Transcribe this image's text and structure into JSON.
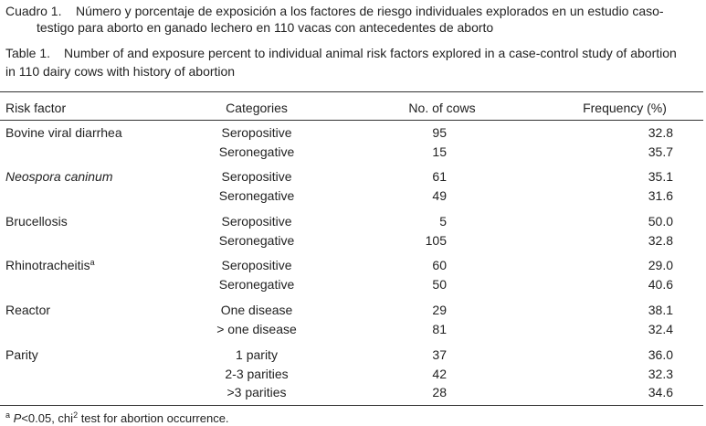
{
  "caption_es": {
    "label": "Cuadro 1.",
    "lines": [
      "Número y porcentaje de exposición a los factores de riesgo individuales explorados en un estudio caso-",
      "testigo para aborto en ganado lechero en 110 vacas con antecedentes de aborto"
    ]
  },
  "caption_en": {
    "label": "Table 1.",
    "lines": [
      "Number of and exposure percent to individual animal risk factors explored in a case-control study of abortion",
      "in 110 dairy cows with history of abortion"
    ]
  },
  "table": {
    "header": [
      "Risk factor",
      "Categories",
      "No. of cows",
      "Frequency (%)"
    ],
    "groups": [
      {
        "factor": "Bovine viral diarrhea",
        "rows": [
          [
            "Seropositive",
            "95",
            "32.8"
          ],
          [
            "Seronegative",
            "15",
            "35.7"
          ]
        ]
      },
      {
        "factor": "Neospora caninum",
        "italic": true,
        "rows": [
          [
            "Seropositive",
            "61",
            "35.1"
          ],
          [
            "Seronegative",
            "49",
            "31.6"
          ]
        ]
      },
      {
        "factor": "Brucellosis",
        "rows": [
          [
            "Seropositive",
            "5",
            "50.0"
          ],
          [
            "Seronegative",
            "105",
            "32.8"
          ]
        ]
      },
      {
        "factor": "Rhinotracheitis",
        "note": "a",
        "rows": [
          [
            "Seropositive",
            "60",
            "29.0"
          ],
          [
            "Seronegative",
            "50",
            "40.6"
          ]
        ]
      },
      {
        "factor": "Reactor",
        "rows": [
          [
            "One disease",
            "29",
            "38.1"
          ],
          [
            "> one disease",
            "81",
            "32.4"
          ]
        ]
      },
      {
        "factor": "Parity",
        "rows": [
          [
            "1 parity",
            "37",
            "36.0"
          ],
          [
            "2-3 parities",
            "42",
            "32.3"
          ],
          [
            ">3 parities",
            "28",
            "34.6"
          ]
        ]
      }
    ]
  },
  "footnote": {
    "mark": "a",
    "italic_text": "P",
    "text": "<0.05, chi",
    "superscript": "2",
    "tail": " test for abortion occurrence."
  }
}
